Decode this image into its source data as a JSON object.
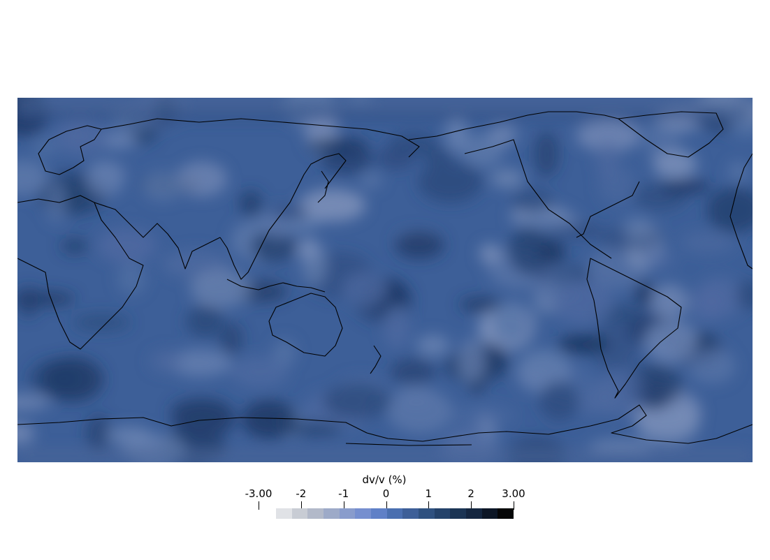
{
  "map": {
    "projection": "equirectangular",
    "center_longitude": 180,
    "field": "dv/v (%)",
    "coastline_color": "#000000"
  },
  "colorbar": {
    "title": "dv/v (%)",
    "range": [
      -3.0,
      3.0
    ],
    "ticks": [
      {
        "value": -3.0,
        "label": "-3.00"
      },
      {
        "value": -2,
        "label": "-2"
      },
      {
        "value": -1,
        "label": "-1"
      },
      {
        "value": 0,
        "label": "0"
      },
      {
        "value": 1,
        "label": "1"
      },
      {
        "value": 2,
        "label": "2"
      },
      {
        "value": 3.0,
        "label": "3.00"
      }
    ],
    "colors": [
      "#e0e2e6",
      "#c8ccd4",
      "#b2b9c9",
      "#9daac8",
      "#899ccc",
      "#768fcf",
      "#5f80c7",
      "#4a6fb0",
      "#3d5f98",
      "#2f5180",
      "#24426a",
      "#1b3454",
      "#142640",
      "#0c1626",
      "#050608"
    ]
  }
}
